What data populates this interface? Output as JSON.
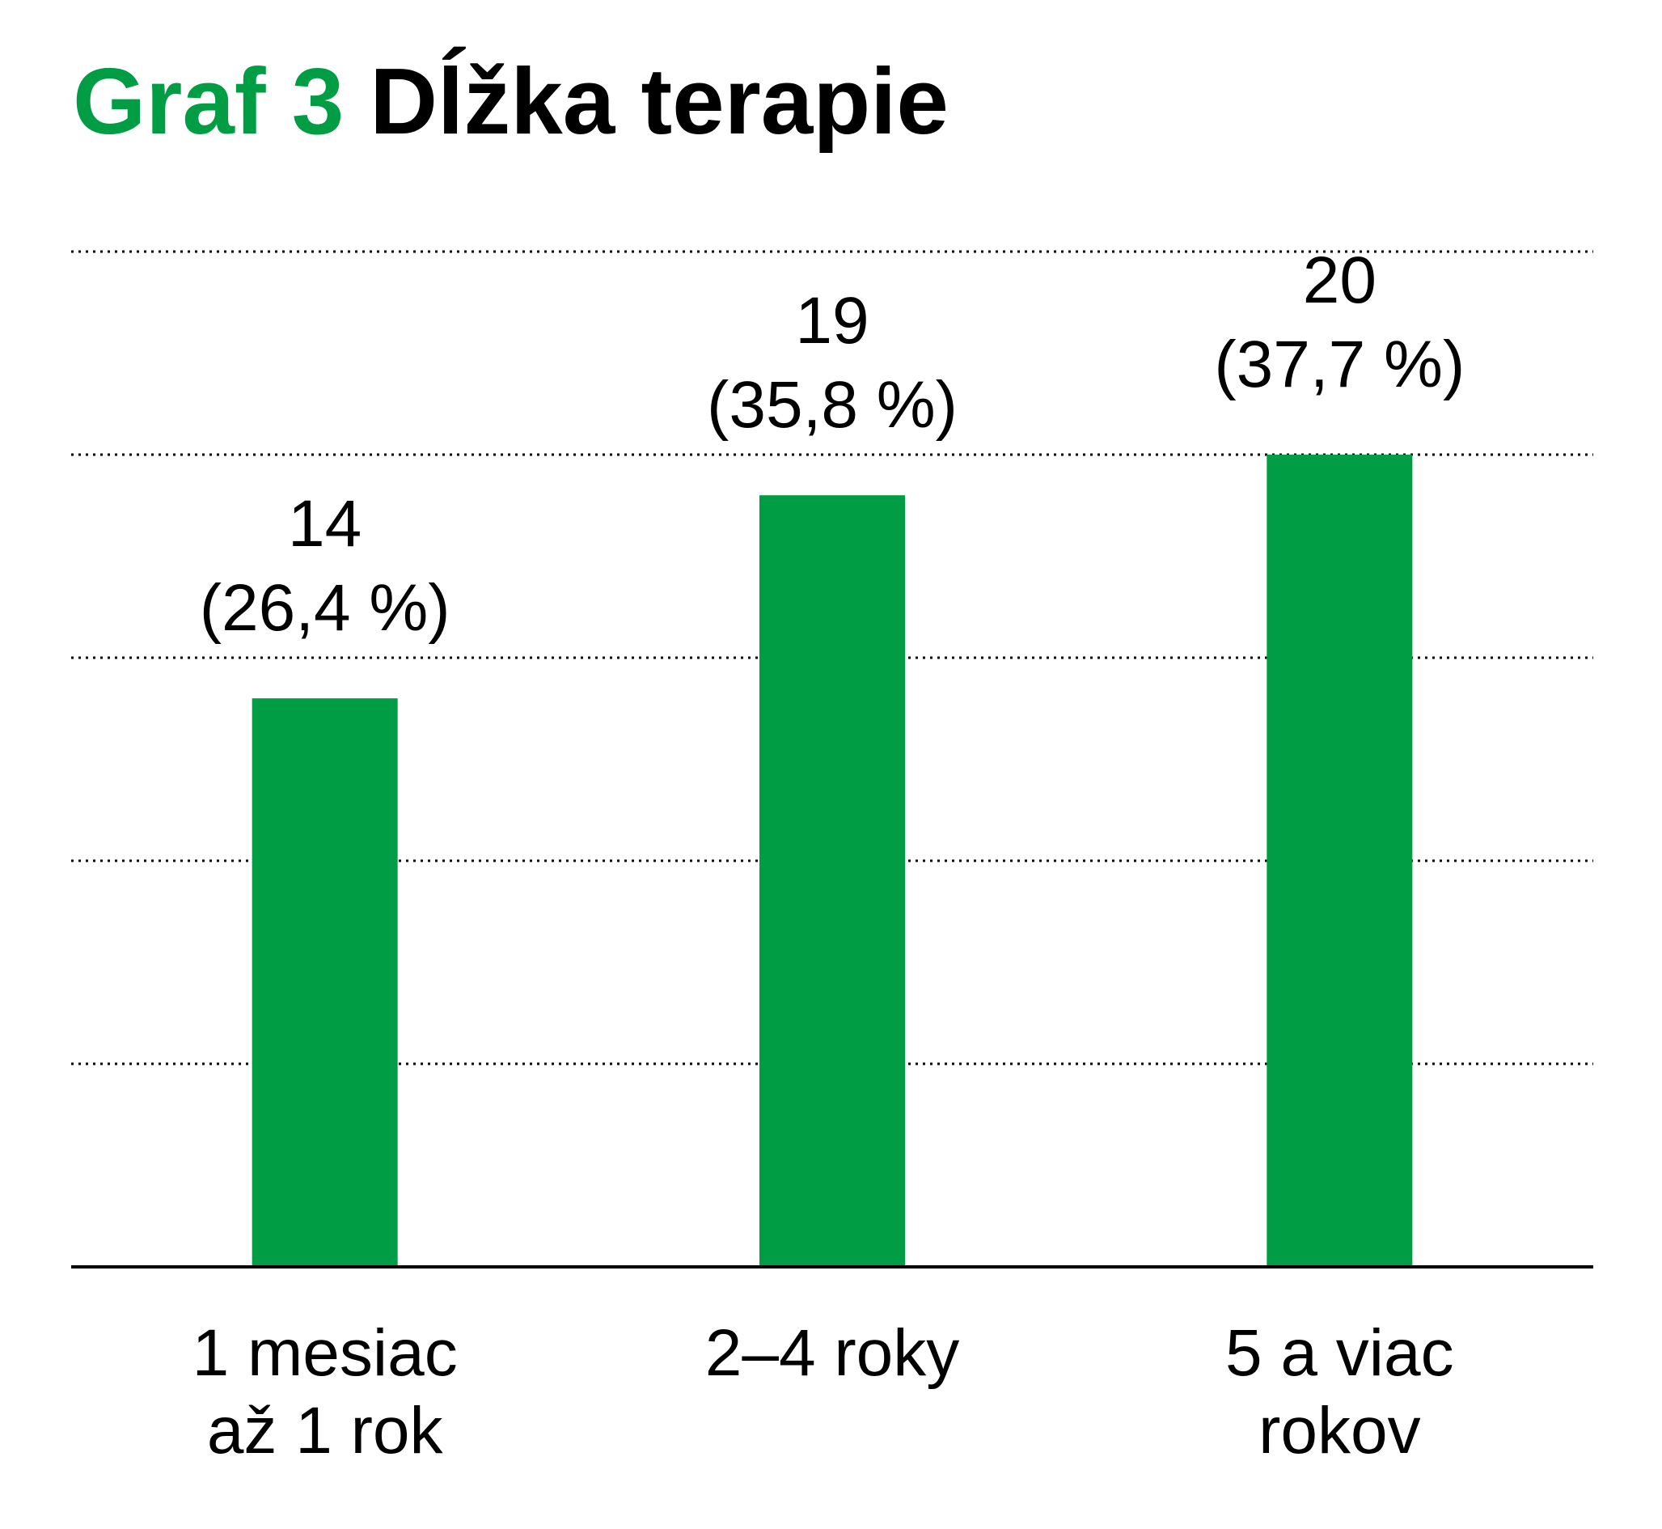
{
  "chart_data": {
    "type": "bar",
    "title_prefix": "Graf 3",
    "title": "Dĺžka terapie",
    "categories": [
      [
        "1 mesiac",
        "až 1 rok"
      ],
      [
        "2–4 roky"
      ],
      [
        "5 a viac",
        "rokov"
      ]
    ],
    "values": [
      14,
      19,
      20
    ],
    "percent_labels": [
      "(26,4 %)",
      "(35,8 %)",
      "(37,7 %)"
    ],
    "ylim": [
      0,
      25
    ],
    "grid": true,
    "colors": {
      "bar": "#009d45",
      "title_prefix": "#009d45",
      "title": "#000000",
      "axis": "#000000",
      "grid": "#000000"
    }
  }
}
